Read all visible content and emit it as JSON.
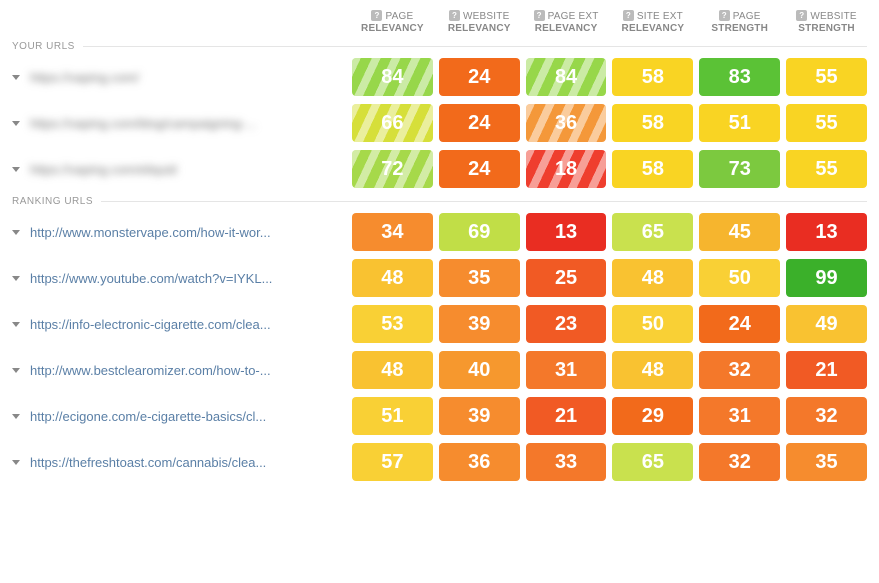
{
  "columns": [
    {
      "line1": "PAGE",
      "line2": "RELEVANCY"
    },
    {
      "line1": "WEBSITE",
      "line2": "RELEVANCY"
    },
    {
      "line1": "PAGE EXT",
      "line2": "RELEVANCY"
    },
    {
      "line1": "SITE EXT",
      "line2": "RELEVANCY"
    },
    {
      "line1": "PAGE",
      "line2": "STRENGTH"
    },
    {
      "line1": "WEBSITE",
      "line2": "STRENGTH"
    }
  ],
  "sections": {
    "your_urls_label": "YOUR URLS",
    "ranking_urls_label": "RANKING URLS"
  },
  "your_urls": [
    {
      "url": "https://vaping.com/",
      "blurred": true,
      "metrics": [
        {
          "value": 84,
          "color": "#97d74a",
          "striped": true
        },
        {
          "value": 24,
          "color": "#f26a1b",
          "striped": false
        },
        {
          "value": 84,
          "color": "#97d74a",
          "striped": true
        },
        {
          "value": 58,
          "color": "#f9d423",
          "striped": false
        },
        {
          "value": 83,
          "color": "#5bc236",
          "striped": false
        },
        {
          "value": 55,
          "color": "#f9d423",
          "striped": false
        }
      ]
    },
    {
      "url": "https://vaping.com/blog/campaigning-...",
      "blurred": true,
      "metrics": [
        {
          "value": 66,
          "color": "#d6df3a",
          "striped": true
        },
        {
          "value": 24,
          "color": "#f26a1b",
          "striped": false
        },
        {
          "value": 36,
          "color": "#f4983a",
          "striped": true
        },
        {
          "value": 58,
          "color": "#f9d423",
          "striped": false
        },
        {
          "value": 51,
          "color": "#f9d423",
          "striped": false
        },
        {
          "value": 55,
          "color": "#f9d423",
          "striped": false
        }
      ]
    },
    {
      "url": "https://vaping.com/eliquid",
      "blurred": true,
      "metrics": [
        {
          "value": 72,
          "color": "#a6d94a",
          "striped": true
        },
        {
          "value": 24,
          "color": "#f26a1b",
          "striped": false
        },
        {
          "value": 18,
          "color": "#ef3e2e",
          "striped": true
        },
        {
          "value": 58,
          "color": "#f9d423",
          "striped": false
        },
        {
          "value": 73,
          "color": "#7cc93f",
          "striped": false
        },
        {
          "value": 55,
          "color": "#f9d423",
          "striped": false
        }
      ]
    }
  ],
  "ranking_urls": [
    {
      "url": "http://www.monstervape.com/how-it-wor...",
      "metrics": [
        {
          "value": 34,
          "color": "#f68c2e",
          "striped": false
        },
        {
          "value": 69,
          "color": "#c1de47",
          "striped": false
        },
        {
          "value": 13,
          "color": "#e92d22",
          "striped": false
        },
        {
          "value": 65,
          "color": "#c9e14e",
          "striped": false
        },
        {
          "value": 45,
          "color": "#f6b52e",
          "striped": false
        },
        {
          "value": 13,
          "color": "#e92d22",
          "striped": false
        }
      ]
    },
    {
      "url": "https://www.youtube.com/watch?v=IYKL...",
      "metrics": [
        {
          "value": 48,
          "color": "#f9c231",
          "striped": false
        },
        {
          "value": 35,
          "color": "#f68c2e",
          "striped": false
        },
        {
          "value": 25,
          "color": "#f15a24",
          "striped": false
        },
        {
          "value": 48,
          "color": "#f9c231",
          "striped": false
        },
        {
          "value": 50,
          "color": "#f9d035",
          "striped": false
        },
        {
          "value": 99,
          "color": "#3bb02a",
          "striped": false
        }
      ]
    },
    {
      "url": "https://info-electronic-cigarette.com/clea...",
      "metrics": [
        {
          "value": 53,
          "color": "#f9d035",
          "striped": false
        },
        {
          "value": 39,
          "color": "#f68c2e",
          "striped": false
        },
        {
          "value": 23,
          "color": "#f15a24",
          "striped": false
        },
        {
          "value": 50,
          "color": "#f9d035",
          "striped": false
        },
        {
          "value": 24,
          "color": "#f26a1b",
          "striped": false
        },
        {
          "value": 49,
          "color": "#f9c231",
          "striped": false
        }
      ]
    },
    {
      "url": "http://www.bestclearomizer.com/how-to-...",
      "metrics": [
        {
          "value": 48,
          "color": "#f9c231",
          "striped": false
        },
        {
          "value": 40,
          "color": "#f6982e",
          "striped": false
        },
        {
          "value": 31,
          "color": "#f4782a",
          "striped": false
        },
        {
          "value": 48,
          "color": "#f9c231",
          "striped": false
        },
        {
          "value": 32,
          "color": "#f4782a",
          "striped": false
        },
        {
          "value": 21,
          "color": "#f15a24",
          "striped": false
        }
      ]
    },
    {
      "url": "http://ecigone.com/e-cigarette-basics/cl...",
      "metrics": [
        {
          "value": 51,
          "color": "#f9d035",
          "striped": false
        },
        {
          "value": 39,
          "color": "#f68c2e",
          "striped": false
        },
        {
          "value": 21,
          "color": "#f15a24",
          "striped": false
        },
        {
          "value": 29,
          "color": "#f26a1b",
          "striped": false
        },
        {
          "value": 31,
          "color": "#f4782a",
          "striped": false
        },
        {
          "value": 32,
          "color": "#f4782a",
          "striped": false
        }
      ]
    },
    {
      "url": "https://thefreshtoast.com/cannabis/clea...",
      "metrics": [
        {
          "value": 57,
          "color": "#f9d035",
          "striped": false
        },
        {
          "value": 36,
          "color": "#f68c2e",
          "striped": false
        },
        {
          "value": 33,
          "color": "#f4782a",
          "striped": false
        },
        {
          "value": 65,
          "color": "#c9e14e",
          "striped": false
        },
        {
          "value": 32,
          "color": "#f4782a",
          "striped": false
        },
        {
          "value": 35,
          "color": "#f68c2e",
          "striped": false
        }
      ]
    }
  ]
}
